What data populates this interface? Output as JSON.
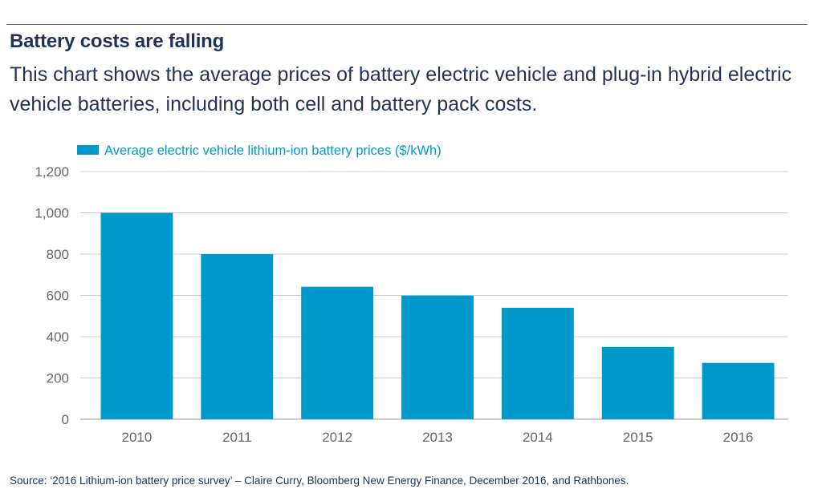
{
  "header": {
    "title": "Battery costs are falling",
    "subtitle": "This chart shows the average prices of battery electric vehicle and plug-in hybrid electric vehicle batteries, including both cell and battery pack costs."
  },
  "footer": {
    "source": "Source: ‘2016 Lithium-ion battery price survey’ – Claire Curry, Bloomberg New Energy Finance, December 2016, and Rathbones."
  },
  "colors": {
    "bar": "#0099cc",
    "legend_text": "#0099cc",
    "grid": "#cccccc",
    "tick_text": "#666666",
    "heading_text": "#1d3359"
  },
  "chart_data": {
    "type": "bar",
    "title": "Battery costs are falling",
    "categories": [
      "2010",
      "2011",
      "2012",
      "2013",
      "2014",
      "2015",
      "2016"
    ],
    "series": [
      {
        "name": "Average electric vehicle lithium-ion battery prices ($/kWh)",
        "values": [
          1000,
          800,
          642,
          599,
          540,
          350,
          273
        ]
      }
    ],
    "xlabel": "",
    "ylabel": "",
    "ylim": [
      0,
      1200
    ],
    "yticks": [
      0,
      200,
      400,
      600,
      800,
      1000,
      1200
    ],
    "ytick_labels": [
      "0",
      "200",
      "400",
      "600",
      "800",
      "1,000",
      "1,200"
    ],
    "grid": true,
    "legend_position": "top-left"
  }
}
